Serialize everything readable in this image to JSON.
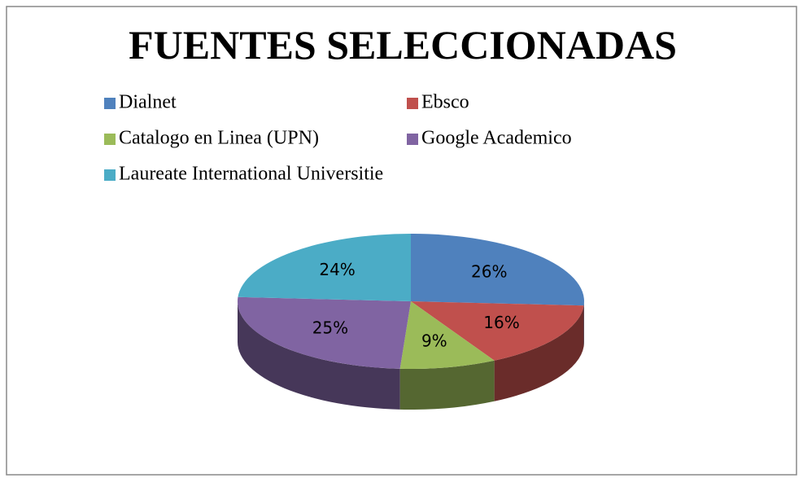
{
  "chart_data": {
    "type": "pie",
    "title": "FUENTES SELECCIONADAS",
    "categories": [
      "Dialnet",
      "Ebsco",
      "Catalogo en Linea (UPN)",
      "Google Academico",
      "Laureate International Universitie"
    ],
    "values": [
      26,
      16,
      9,
      25,
      24
    ],
    "value_labels": [
      "26%",
      "16%",
      "9%",
      "25%",
      "24%"
    ],
    "colors": [
      "#4f81bd",
      "#c0504d",
      "#9bbb59",
      "#8064a2",
      "#4bacc6"
    ],
    "legend": "top"
  }
}
